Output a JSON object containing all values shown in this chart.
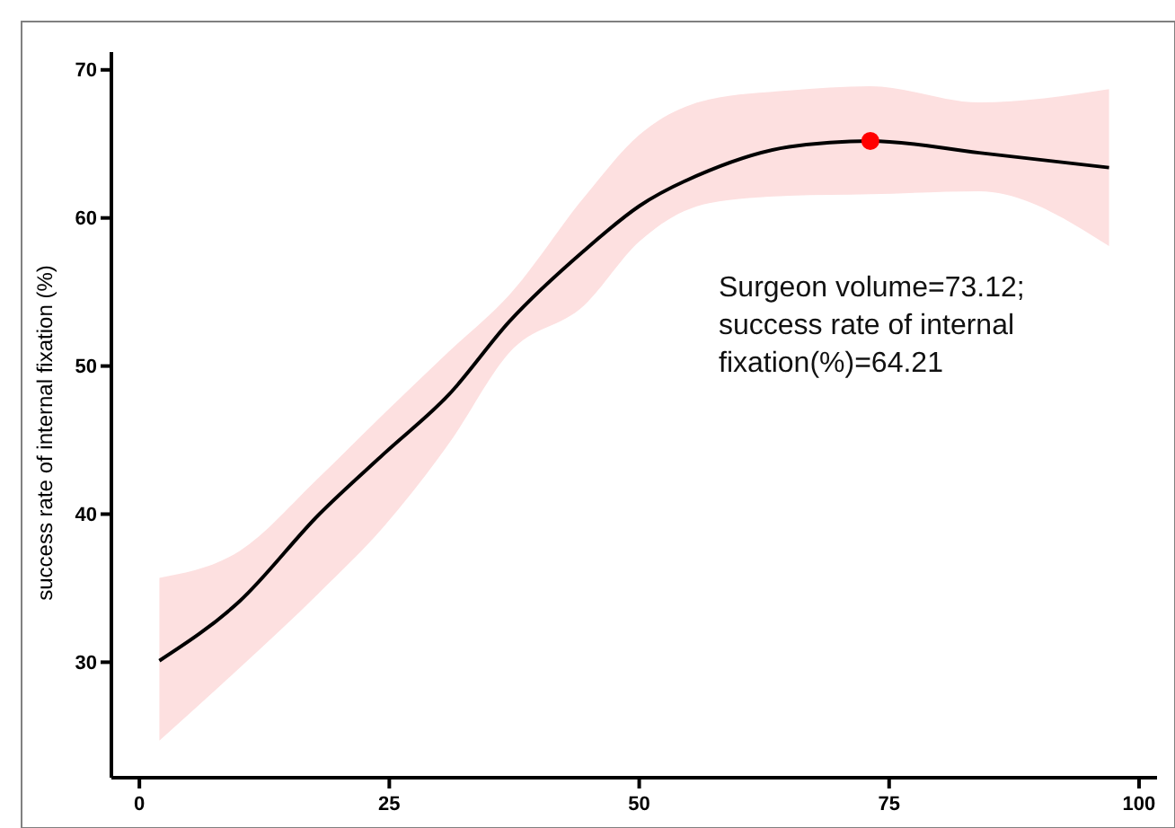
{
  "chart_data": {
    "type": "line",
    "ylabel": "success rate of internal fixation (%)",
    "xlim": [
      -2.8,
      101.8
    ],
    "xticks": [
      0,
      25,
      50,
      75,
      100
    ],
    "ylim": [
      22.2,
      71.2
    ],
    "yticks": [
      30,
      40,
      50,
      60,
      70
    ],
    "grid": false,
    "series": [
      {
        "color": "#000000",
        "marker": "none",
        "line_style": "solid",
        "x": [
          2,
          10,
          18,
          24.5,
          31,
          37,
          44.5,
          50,
          57,
          65,
          73.12,
          84,
          97
        ],
        "values": [
          30.1,
          34.1,
          40,
          44.1,
          48.1,
          53,
          57.8,
          60.8,
          63.2,
          64.8,
          65.2,
          64.4,
          63.4
        ],
        "upper": [
          35.7,
          37.5,
          42.5,
          46.8,
          51,
          54.8,
          61.4,
          65.6,
          68,
          68.6,
          68.9,
          67.8,
          68.7
        ],
        "lower": [
          24.7,
          29.6,
          34.7,
          39.2,
          44.8,
          50.9,
          54.1,
          58.4,
          61,
          61.5,
          61.6,
          61.8,
          58.1
        ]
      },
      {
        "type": "scatter",
        "color": "#ff0000",
        "marker": "circle",
        "x": [
          73.12
        ],
        "values": [
          65.2
        ]
      }
    ],
    "annotations": [
      "Surgeon volume=73.12;\nsuccess rate of internal\nfixation(%)=64.21"
    ]
  }
}
